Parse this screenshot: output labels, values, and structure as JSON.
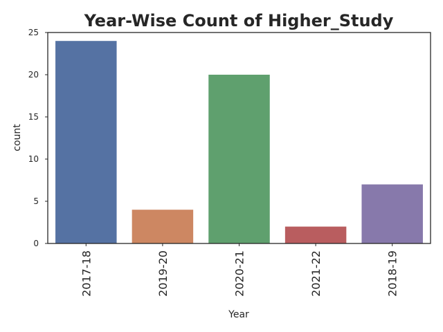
{
  "chart_data": {
    "type": "bar",
    "title": "Year-Wise Count of Higher_Study",
    "xlabel": "Year",
    "ylabel": "count",
    "categories": [
      "2017-18",
      "2019-20",
      "2020-21",
      "2021-22",
      "2018-19"
    ],
    "values": [
      24,
      4,
      20,
      2,
      7
    ],
    "colors": [
      "#5572a3",
      "#cd8762",
      "#5fa06e",
      "#b95d5f",
      "#8779ab"
    ],
    "ylim": [
      0,
      25
    ],
    "yticks": [
      "0",
      "5",
      "10",
      "15",
      "20",
      "25"
    ],
    "grid": false,
    "legend": "none"
  }
}
